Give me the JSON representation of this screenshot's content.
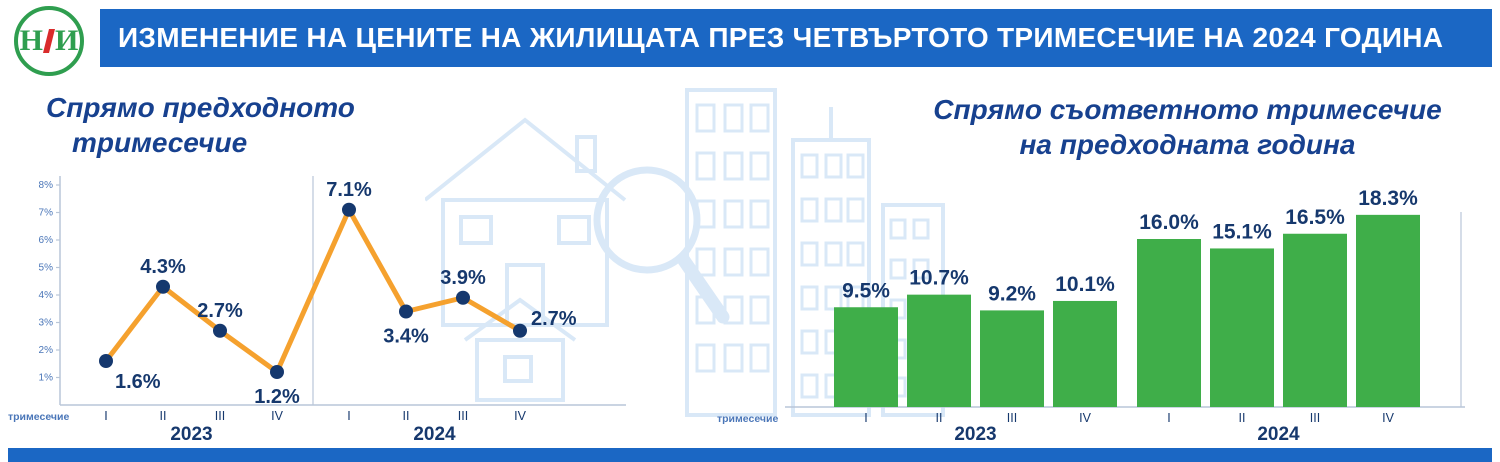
{
  "header": {
    "title": "ИЗМЕНЕНИЕ НА ЦЕНИТЕ НА ЖИЛИЩАТА ПРЕЗ ЧЕТВЪРТОТО ТРИМЕСЕЧИЕ НА 2024 ГОДИНА",
    "logo_left": "Н",
    "logo_right": "И"
  },
  "colors": {
    "header_bg": "#1b67c4",
    "header_text": "#ffffff",
    "chart_title": "#17418f",
    "axis": "#b9c6d8",
    "tick_text": "#4a76b8",
    "label_text": "#16386d",
    "bar": "#3FAE49",
    "line": "#F5A12E",
    "marker": "#15386E",
    "footer_bg": "#1b67c4",
    "watermark": "#d9e8f7",
    "logo_green": "#2f9e4f",
    "logo_red": "#d92b2b"
  },
  "chart_data": [
    {
      "type": "line",
      "title": "Спрямо предходното тримесечие",
      "title_lines": [
        "Спрямо предходното",
        "тримесечие"
      ],
      "categories": [
        "I",
        "II",
        "III",
        "IV",
        "I",
        "II",
        "III",
        "IV"
      ],
      "values": [
        1.6,
        4.3,
        2.7,
        1.2,
        7.1,
        3.4,
        3.9,
        2.7
      ],
      "labels": [
        "1.6%",
        "4.3%",
        "2.7%",
        "1.2%",
        "7.1%",
        "3.4%",
        "3.9%",
        "2.7%"
      ],
      "label_side": [
        "below-right",
        "above",
        "above",
        "below",
        "above",
        "below",
        "above",
        "above-right"
      ],
      "x_axis_label": "тримесечие",
      "year_groups": [
        "2023",
        "2024"
      ],
      "ylim": [
        0,
        8
      ],
      "yticks": [
        "1%",
        "2%",
        "3%",
        "4%",
        "5%",
        "6%",
        "7%",
        "8%"
      ],
      "grid": false,
      "legend": "none",
      "line_color": "#F5A12E",
      "marker_color": "#15386E"
    },
    {
      "type": "bar",
      "title": "Спрямо съответното тримесечие на предходната година",
      "title_lines": [
        "Спрямо съответното тримесечие",
        "на предходната година"
      ],
      "categories": [
        "I",
        "II",
        "III",
        "IV",
        "I",
        "II",
        "III",
        "IV"
      ],
      "values": [
        9.5,
        10.7,
        9.2,
        10.1,
        16.0,
        15.1,
        16.5,
        18.3
      ],
      "labels": [
        "9.5%",
        "10.7%",
        "9.2%",
        "10.1%",
        "16.0%",
        "15.1%",
        "16.5%",
        "18.3%"
      ],
      "x_axis_label": "тримесечие",
      "year_groups": [
        "2023",
        "2024"
      ],
      "ylim": [
        0,
        20
      ],
      "grid": false,
      "legend": "none",
      "bar_color": "#3FAE49"
    }
  ]
}
